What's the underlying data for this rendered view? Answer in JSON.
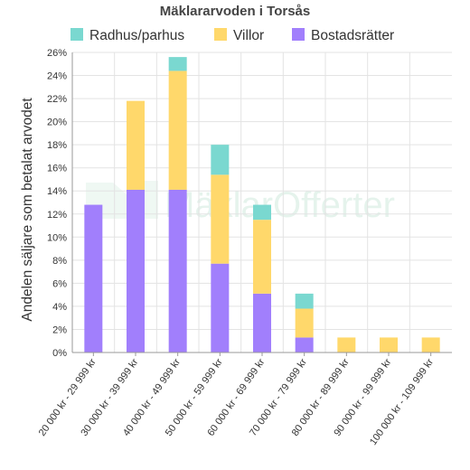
{
  "chart_data": {
    "type": "bar",
    "stacked": true,
    "title": "Mäklararvoden i Torsås",
    "xlabel": "",
    "ylabel": "Andelen säljare som betalat arvodet",
    "ylim": [
      0,
      26
    ],
    "y_tick_labels": [
      "0%",
      "2%",
      "4%",
      "6%",
      "8%",
      "10%",
      "12%",
      "14%",
      "16%",
      "18%",
      "20%",
      "22%",
      "24%",
      "26%"
    ],
    "grid": true,
    "legend_position": "top",
    "categories": [
      "20 000 kr - 29 999 kr",
      "30 000 kr - 39 999 kr",
      "40 000 kr - 49 999 kr",
      "50 000 kr - 59 999 kr",
      "60 000 kr - 69 999 kr",
      "70 000 kr - 79 999 kr",
      "80 000 kr - 89 999 kr",
      "90 000 kr - 99 999 kr",
      "100 000 kr - 109 999 kr"
    ],
    "series": [
      {
        "name": "Bostadsrätter",
        "color": "#a17ffc",
        "values": [
          12.8,
          14.1,
          14.1,
          7.7,
          5.1,
          1.3,
          0,
          0,
          0
        ]
      },
      {
        "name": "Villor",
        "color": "#ffd86b",
        "values": [
          0,
          7.7,
          10.3,
          7.7,
          6.4,
          2.5,
          1.3,
          1.3,
          1.3
        ]
      },
      {
        "name": "Radhus/parhus",
        "color": "#7ad8d0",
        "values": [
          0,
          0,
          1.2,
          2.6,
          1.3,
          1.3,
          0,
          0,
          0
        ]
      }
    ],
    "legend_order": [
      "Radhus/parhus",
      "Villor",
      "Bostadsrätter"
    ]
  },
  "watermark": {
    "text": "MäklarOfferter"
  }
}
